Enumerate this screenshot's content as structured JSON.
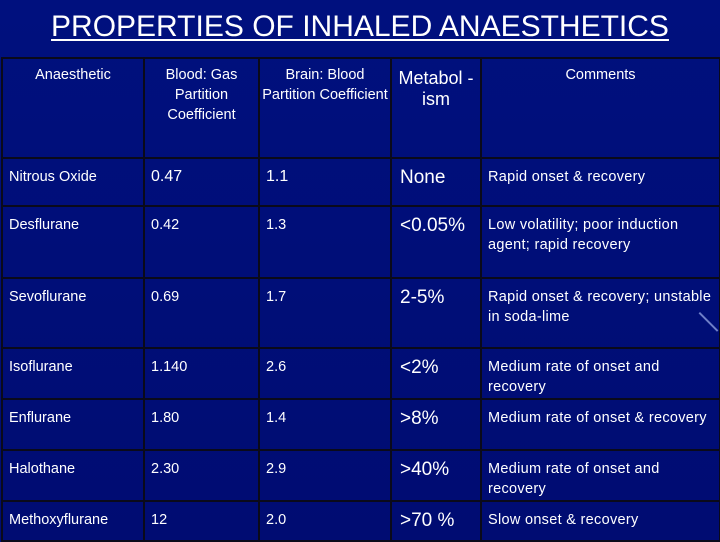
{
  "slide": {
    "title": "PROPERTIES OF INHALED ANAESTHETICS"
  },
  "table": {
    "headers": [
      "Anaesthetic",
      "Blood: Gas Partition Coefficient",
      "Brain: Blood Partition Coefficient",
      "Metabol -ism",
      "Comments"
    ],
    "rows": [
      [
        "Nitrous Oxide",
        "0.47",
        "1.1",
        "None",
        "Rapid onset  & recovery"
      ],
      [
        "Desflurane",
        "0.42",
        "1.3",
        "<0.05%",
        "Low volatility; poor induction agent; rapid recovery"
      ],
      [
        "Sevoflurane",
        "0.69",
        "1.7",
        "2-5%",
        "Rapid onset & recovery; unstable in soda-lime"
      ],
      [
        "Isoflurane",
        "1.140",
        "2.6",
        "<2%",
        "Medium rate of onset and recovery"
      ],
      [
        "Enflurane",
        "1.80",
        "1.4",
        ">8%",
        "Medium rate of onset & recovery"
      ],
      [
        "Halothane",
        "2.30",
        "2.9",
        ">40%",
        "Medium rate of onset and recovery"
      ],
      [
        "Methoxyflurane",
        "12",
        "2.0",
        ">70 %",
        "Slow onset & recovery"
      ]
    ]
  },
  "colors": {
    "background": "#000e7a",
    "text": "#ffffff",
    "grid": "#0a0a1a"
  }
}
